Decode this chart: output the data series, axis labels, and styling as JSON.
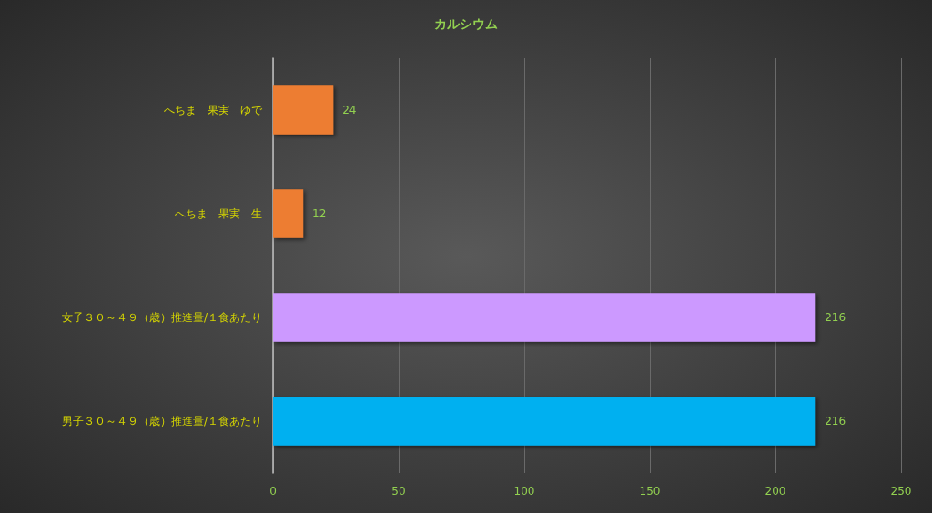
{
  "chart_data": {
    "type": "bar",
    "orientation": "horizontal",
    "title": "カルシウム",
    "categories": [
      "へちま　果実　ゆで",
      "へちま　果実　生",
      "女子３０～４９（歳）推進量/１食あたり",
      "男子３０～４９（歳）推進量/１食あたり"
    ],
    "values": [
      24,
      12,
      216,
      216
    ],
    "colors": [
      "#ed7d31",
      "#ed7d31",
      "#cc99ff",
      "#00b0f0"
    ],
    "xlim": [
      0,
      250
    ],
    "xticks": [
      0,
      50,
      100,
      150,
      200,
      250
    ],
    "grid": "x",
    "data_labels": true
  }
}
